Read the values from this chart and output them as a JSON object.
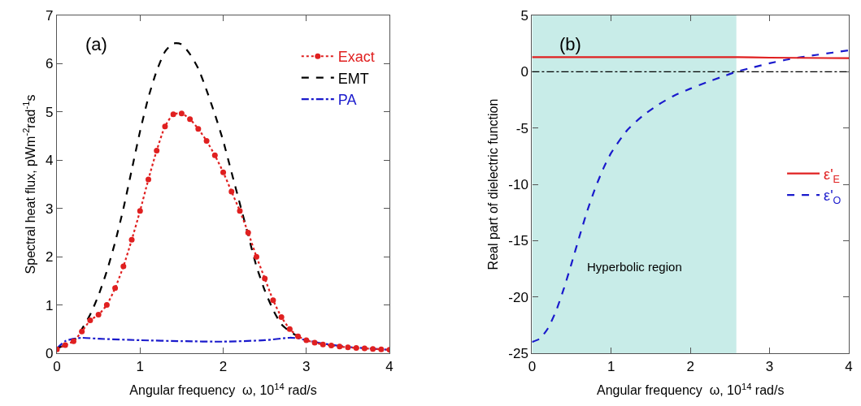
{
  "chart_data": [
    {
      "type": "line",
      "xlabel": "Angular frequency  ω, 10$^{14}$ rad/s",
      "ylabel": "Spectral heat flux, pWm$^{-2}$rad$^{-1}$s",
      "xlim": [
        0,
        4
      ],
      "xticks": [
        0,
        1,
        2,
        3,
        4
      ],
      "ylim": [
        0,
        7
      ],
      "yticks": [
        0,
        1,
        2,
        3,
        4,
        5,
        6,
        7
      ],
      "grid": false,
      "legend": "top right",
      "annotations": [
        "(a)"
      ],
      "series": [
        {
          "name": "Exact",
          "color": "#e02020",
          "marker": "circle",
          "line_style": "dotted",
          "x": [
            0,
            0.1,
            0.2,
            0.3,
            0.4,
            0.5,
            0.6,
            0.7,
            0.8,
            0.9,
            1.0,
            1.1,
            1.2,
            1.3,
            1.4,
            1.5,
            1.6,
            1.7,
            1.8,
            1.9,
            2.0,
            2.1,
            2.2,
            2.3,
            2.4,
            2.5,
            2.6,
            2.7,
            2.8,
            2.9,
            3.0,
            3.1,
            3.2,
            3.3,
            3.4,
            3.5,
            3.6,
            3.7,
            3.8,
            3.9,
            4.0
          ],
          "values": [
            0.08,
            0.17,
            0.25,
            0.45,
            0.68,
            0.8,
            1.0,
            1.35,
            1.8,
            2.35,
            2.95,
            3.6,
            4.2,
            4.7,
            4.95,
            4.97,
            4.85,
            4.65,
            4.4,
            4.1,
            3.75,
            3.35,
            2.95,
            2.5,
            2.0,
            1.55,
            1.1,
            0.75,
            0.5,
            0.35,
            0.27,
            0.22,
            0.18,
            0.16,
            0.14,
            0.12,
            0.11,
            0.1,
            0.09,
            0.08,
            0.07
          ]
        },
        {
          "name": "EMT",
          "color": "#000000",
          "marker": "none",
          "line_style": "dashed",
          "x": [
            0,
            0.1,
            0.2,
            0.3,
            0.4,
            0.5,
            0.6,
            0.7,
            0.8,
            0.9,
            1.0,
            1.1,
            1.2,
            1.3,
            1.4,
            1.5,
            1.6,
            1.7,
            1.8,
            1.9,
            2.0,
            2.1,
            2.2,
            2.3,
            2.4,
            2.5,
            2.6,
            2.7,
            2.8,
            2.9,
            3.0
          ],
          "values": [
            0.1,
            0.17,
            0.25,
            0.5,
            0.8,
            1.2,
            1.7,
            2.3,
            3.0,
            3.8,
            4.6,
            5.3,
            5.85,
            6.25,
            6.42,
            6.4,
            6.2,
            5.9,
            5.45,
            4.95,
            4.4,
            3.75,
            3.1,
            2.45,
            1.8,
            1.3,
            0.9,
            0.6,
            0.45,
            0.35,
            0.27
          ]
        },
        {
          "name": "PA",
          "color": "#1a1acc",
          "marker": "none",
          "line_style": "dashdot",
          "x": [
            0,
            0.1,
            0.2,
            0.3,
            0.5,
            1.0,
            1.5,
            2.0,
            2.5,
            2.8,
            2.9,
            3.0,
            3.2,
            3.5,
            4.0
          ],
          "values": [
            0.1,
            0.25,
            0.3,
            0.32,
            0.3,
            0.27,
            0.25,
            0.24,
            0.27,
            0.32,
            0.31,
            0.27,
            0.2,
            0.13,
            0.07
          ]
        }
      ]
    },
    {
      "type": "line",
      "xlabel": "Angular frequency  ω, 10$^{14}$ rad/s",
      "ylabel": "Real part of dielectric function",
      "xlim": [
        0,
        4
      ],
      "xticks": [
        0,
        1,
        2,
        3,
        4
      ],
      "ylim": [
        -25,
        5
      ],
      "yticks": [
        -25,
        -20,
        -15,
        -10,
        -5,
        0,
        5
      ],
      "grid": false,
      "legend": "right",
      "annotations": [
        "(b)"
      ],
      "bands": [
        {
          "axis": "x",
          "from": 0,
          "to": 2.58,
          "label": "Hyperbolic region",
          "color": "#c8ece8"
        }
      ],
      "ref_lines": [
        {
          "axis": "y",
          "value": 0,
          "color": "#000000",
          "line_style": "dashdot"
        }
      ],
      "series": [
        {
          "name": "ε'$_{E}$",
          "color": "#e02020",
          "marker": "none",
          "line_style": "solid",
          "x": [
            0,
            2.6,
            3.0,
            4.0
          ],
          "values": [
            1.3,
            1.3,
            1.25,
            1.2
          ]
        },
        {
          "name": "ε'$_{O}$",
          "color": "#1a1acc",
          "marker": "none",
          "line_style": "dashed",
          "x": [
            0,
            0.1,
            0.2,
            0.3,
            0.4,
            0.5,
            0.6,
            0.7,
            0.8,
            0.9,
            1.0,
            1.2,
            1.4,
            1.6,
            1.8,
            2.0,
            2.2,
            2.4,
            2.58,
            2.8,
            3.0,
            3.2,
            3.4,
            3.6,
            3.8,
            4.0
          ],
          "values": [
            -24,
            -23.7,
            -22.8,
            -21.3,
            -19.3,
            -17,
            -14.6,
            -12.3,
            -10.3,
            -8.6,
            -7.2,
            -5.2,
            -3.9,
            -2.9,
            -2.1,
            -1.5,
            -0.95,
            -0.45,
            0,
            0.4,
            0.75,
            1.05,
            1.3,
            1.5,
            1.7,
            1.9
          ]
        }
      ]
    }
  ]
}
